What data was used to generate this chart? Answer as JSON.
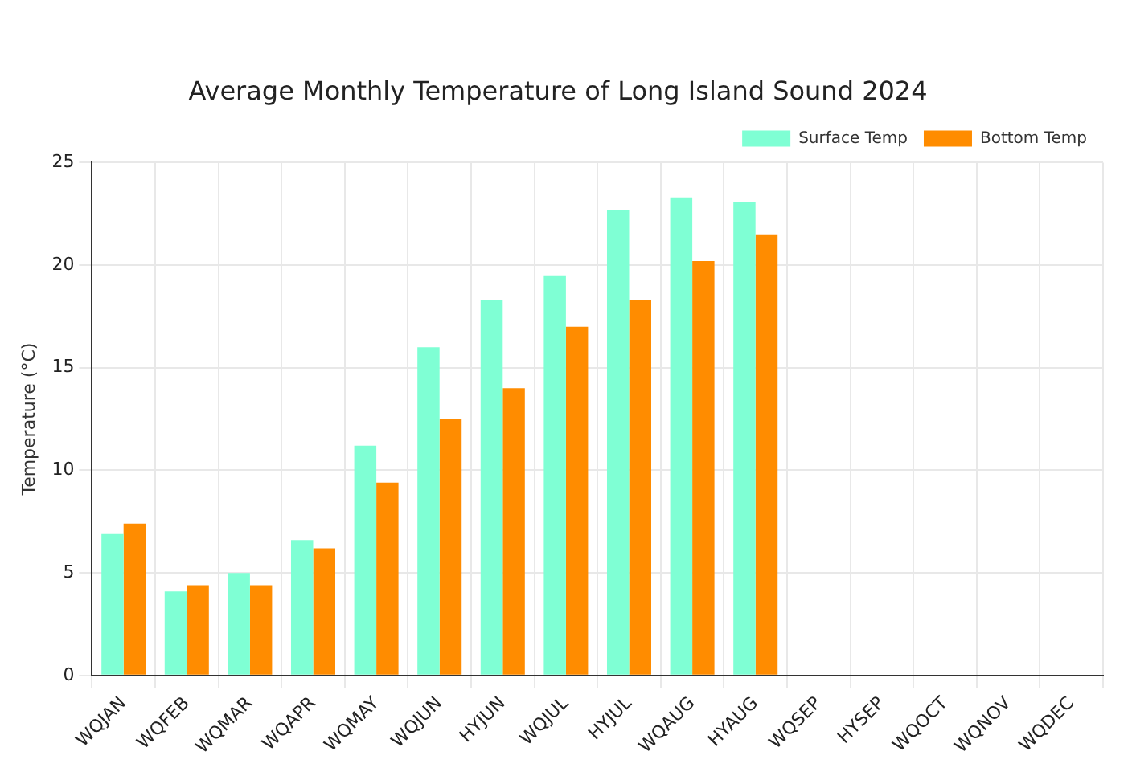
{
  "chart_data": {
    "type": "bar",
    "title": "Average Monthly Temperature of Long Island Sound 2024",
    "ylabel": "Temperature (°C)",
    "categories": [
      "WQJAN",
      "WQFEB",
      "WQMAR",
      "WQAPR",
      "WQMAY",
      "WQJUN",
      "HYJUN",
      "WQJUL",
      "HYJUL",
      "WQAUG",
      "HYAUG",
      "WQSEP",
      "HYSEP",
      "WQOCT",
      "WQNOV",
      "WQDEC"
    ],
    "series": [
      {
        "name": "Surface Temp",
        "color": "#7fffd4",
        "values": [
          6.9,
          4.1,
          5.0,
          6.6,
          11.2,
          16.0,
          18.3,
          19.5,
          22.7,
          23.3,
          23.1,
          null,
          null,
          null,
          null,
          null
        ]
      },
      {
        "name": "Bottom Temp",
        "color": "#ff8c00",
        "values": [
          7.4,
          4.4,
          4.4,
          6.2,
          9.4,
          12.5,
          14.0,
          17.0,
          18.3,
          20.2,
          21.5,
          null,
          null,
          null,
          null,
          null
        ]
      }
    ],
    "ylim": [
      0,
      25
    ],
    "yticks": [
      0,
      5,
      10,
      15,
      20,
      25
    ],
    "grid": true,
    "legend": "top right"
  }
}
